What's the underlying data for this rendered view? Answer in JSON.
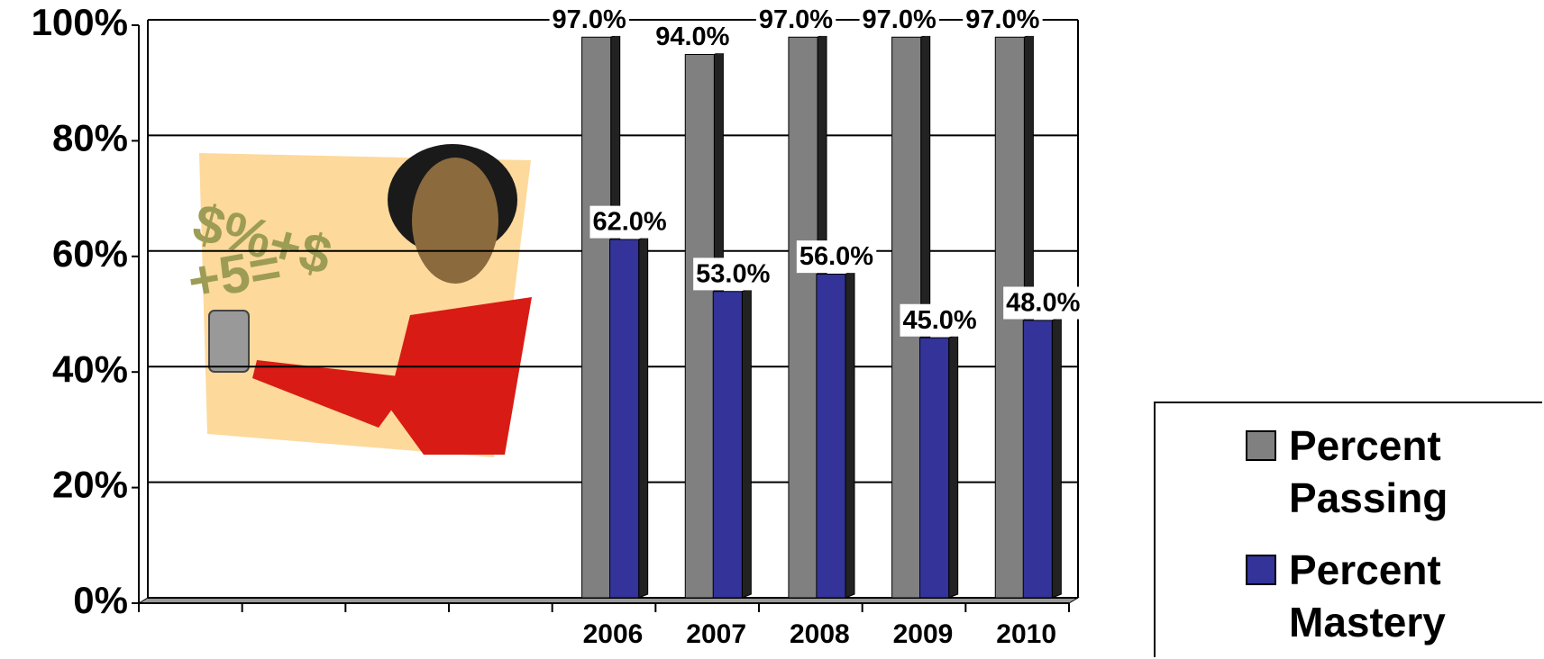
{
  "chart_data": {
    "type": "bar",
    "categories": [
      null,
      null,
      null,
      null,
      "2006",
      "2007",
      "2008",
      "2009",
      "2010"
    ],
    "series": [
      {
        "name": "Percent Passing",
        "color": "#808080",
        "values": [
          null,
          null,
          null,
          null,
          97,
          94,
          97,
          97,
          97
        ],
        "value_labels": [
          null,
          null,
          null,
          null,
          "97.0%",
          "94.0%",
          "97.0%",
          "97.0%",
          "97.0%"
        ]
      },
      {
        "name": "Percent Mastery",
        "color": "#333399",
        "values": [
          null,
          null,
          null,
          null,
          62,
          53,
          56,
          45,
          48
        ],
        "value_labels": [
          null,
          null,
          null,
          null,
          "62.0%",
          "53.0%",
          "56.0%",
          "45.0%",
          "48.0%"
        ]
      }
    ],
    "ylim": [
      0,
      100
    ],
    "yticks": [
      {
        "value": 0,
        "label": "0%"
      },
      {
        "value": 20,
        "label": "20%"
      },
      {
        "value": 40,
        "label": "40%"
      },
      {
        "value": 60,
        "label": "60%"
      },
      {
        "value": 80,
        "label": "80%"
      },
      {
        "value": 100,
        "label": "100%"
      }
    ],
    "grid": true,
    "legend": "lower right"
  }
}
